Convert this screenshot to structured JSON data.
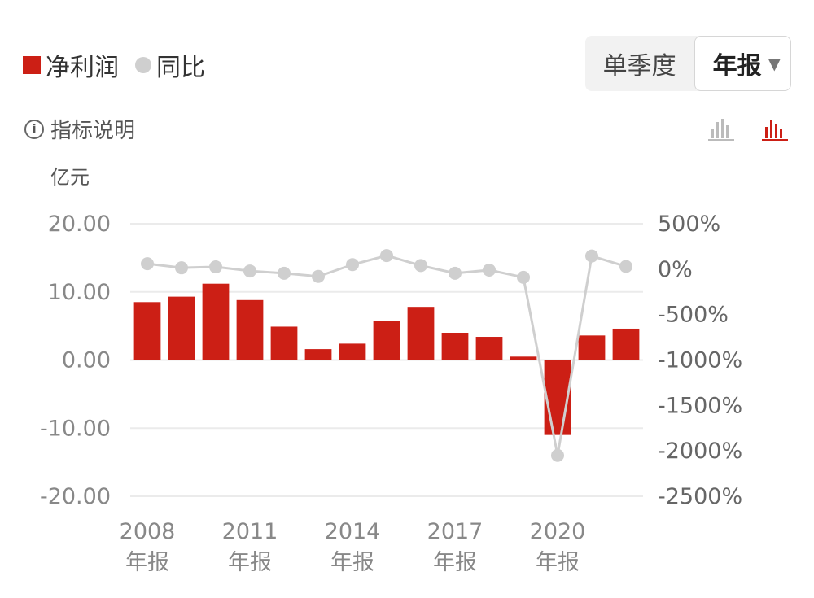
{
  "legend": {
    "bar_label": "净利润",
    "dot_label": "同比"
  },
  "toggle": {
    "quarter": "单季度",
    "annual": "年报"
  },
  "info_label": "指标说明",
  "unit": "亿元",
  "icons": {
    "info": "info-circle-icon",
    "chart_a": "bar-chart-icon",
    "chart_b": "bar-chart-icon"
  },
  "colors": {
    "bar": "#cc1f15",
    "line": "#cfcfcf",
    "grid": "#ebebeb",
    "axis_text": "#888888"
  },
  "chart_data": {
    "type": "bar",
    "categories": [
      "2008",
      "2009",
      "2010",
      "2011",
      "2012",
      "2013",
      "2014",
      "2015",
      "2016",
      "2017",
      "2018",
      "2019",
      "2020",
      "2021",
      "2022"
    ],
    "xtick_labels": [
      {
        "year": "2008",
        "sub": "年报"
      },
      {
        "year": "2011",
        "sub": "年报"
      },
      {
        "year": "2014",
        "sub": "年报"
      },
      {
        "year": "2017",
        "sub": "年报"
      },
      {
        "year": "2020",
        "sub": "年报"
      }
    ],
    "series": [
      {
        "name": "净利润",
        "axis": "left",
        "values": [
          8.5,
          9.3,
          11.2,
          8.8,
          4.9,
          1.6,
          2.4,
          5.7,
          7.8,
          4.0,
          3.4,
          0.5,
          -11.0,
          3.6,
          4.6
        ]
      },
      {
        "name": "同比",
        "axis": "right",
        "type": "line",
        "values": [
          60,
          15,
          25,
          -20,
          -45,
          -80,
          50,
          150,
          40,
          -45,
          -10,
          -90,
          -2050,
          145,
          30
        ]
      }
    ],
    "ylim_left": [
      -20,
      20
    ],
    "yticks_left": [
      "20.00",
      "10.00",
      "0.00",
      "-10.00",
      "-20.00"
    ],
    "ylim_right": [
      -2500,
      500
    ],
    "yticks_right": [
      "500%",
      "0%",
      "-500%",
      "-1000%",
      "-1500%",
      "-2000%",
      "-2500%"
    ]
  }
}
